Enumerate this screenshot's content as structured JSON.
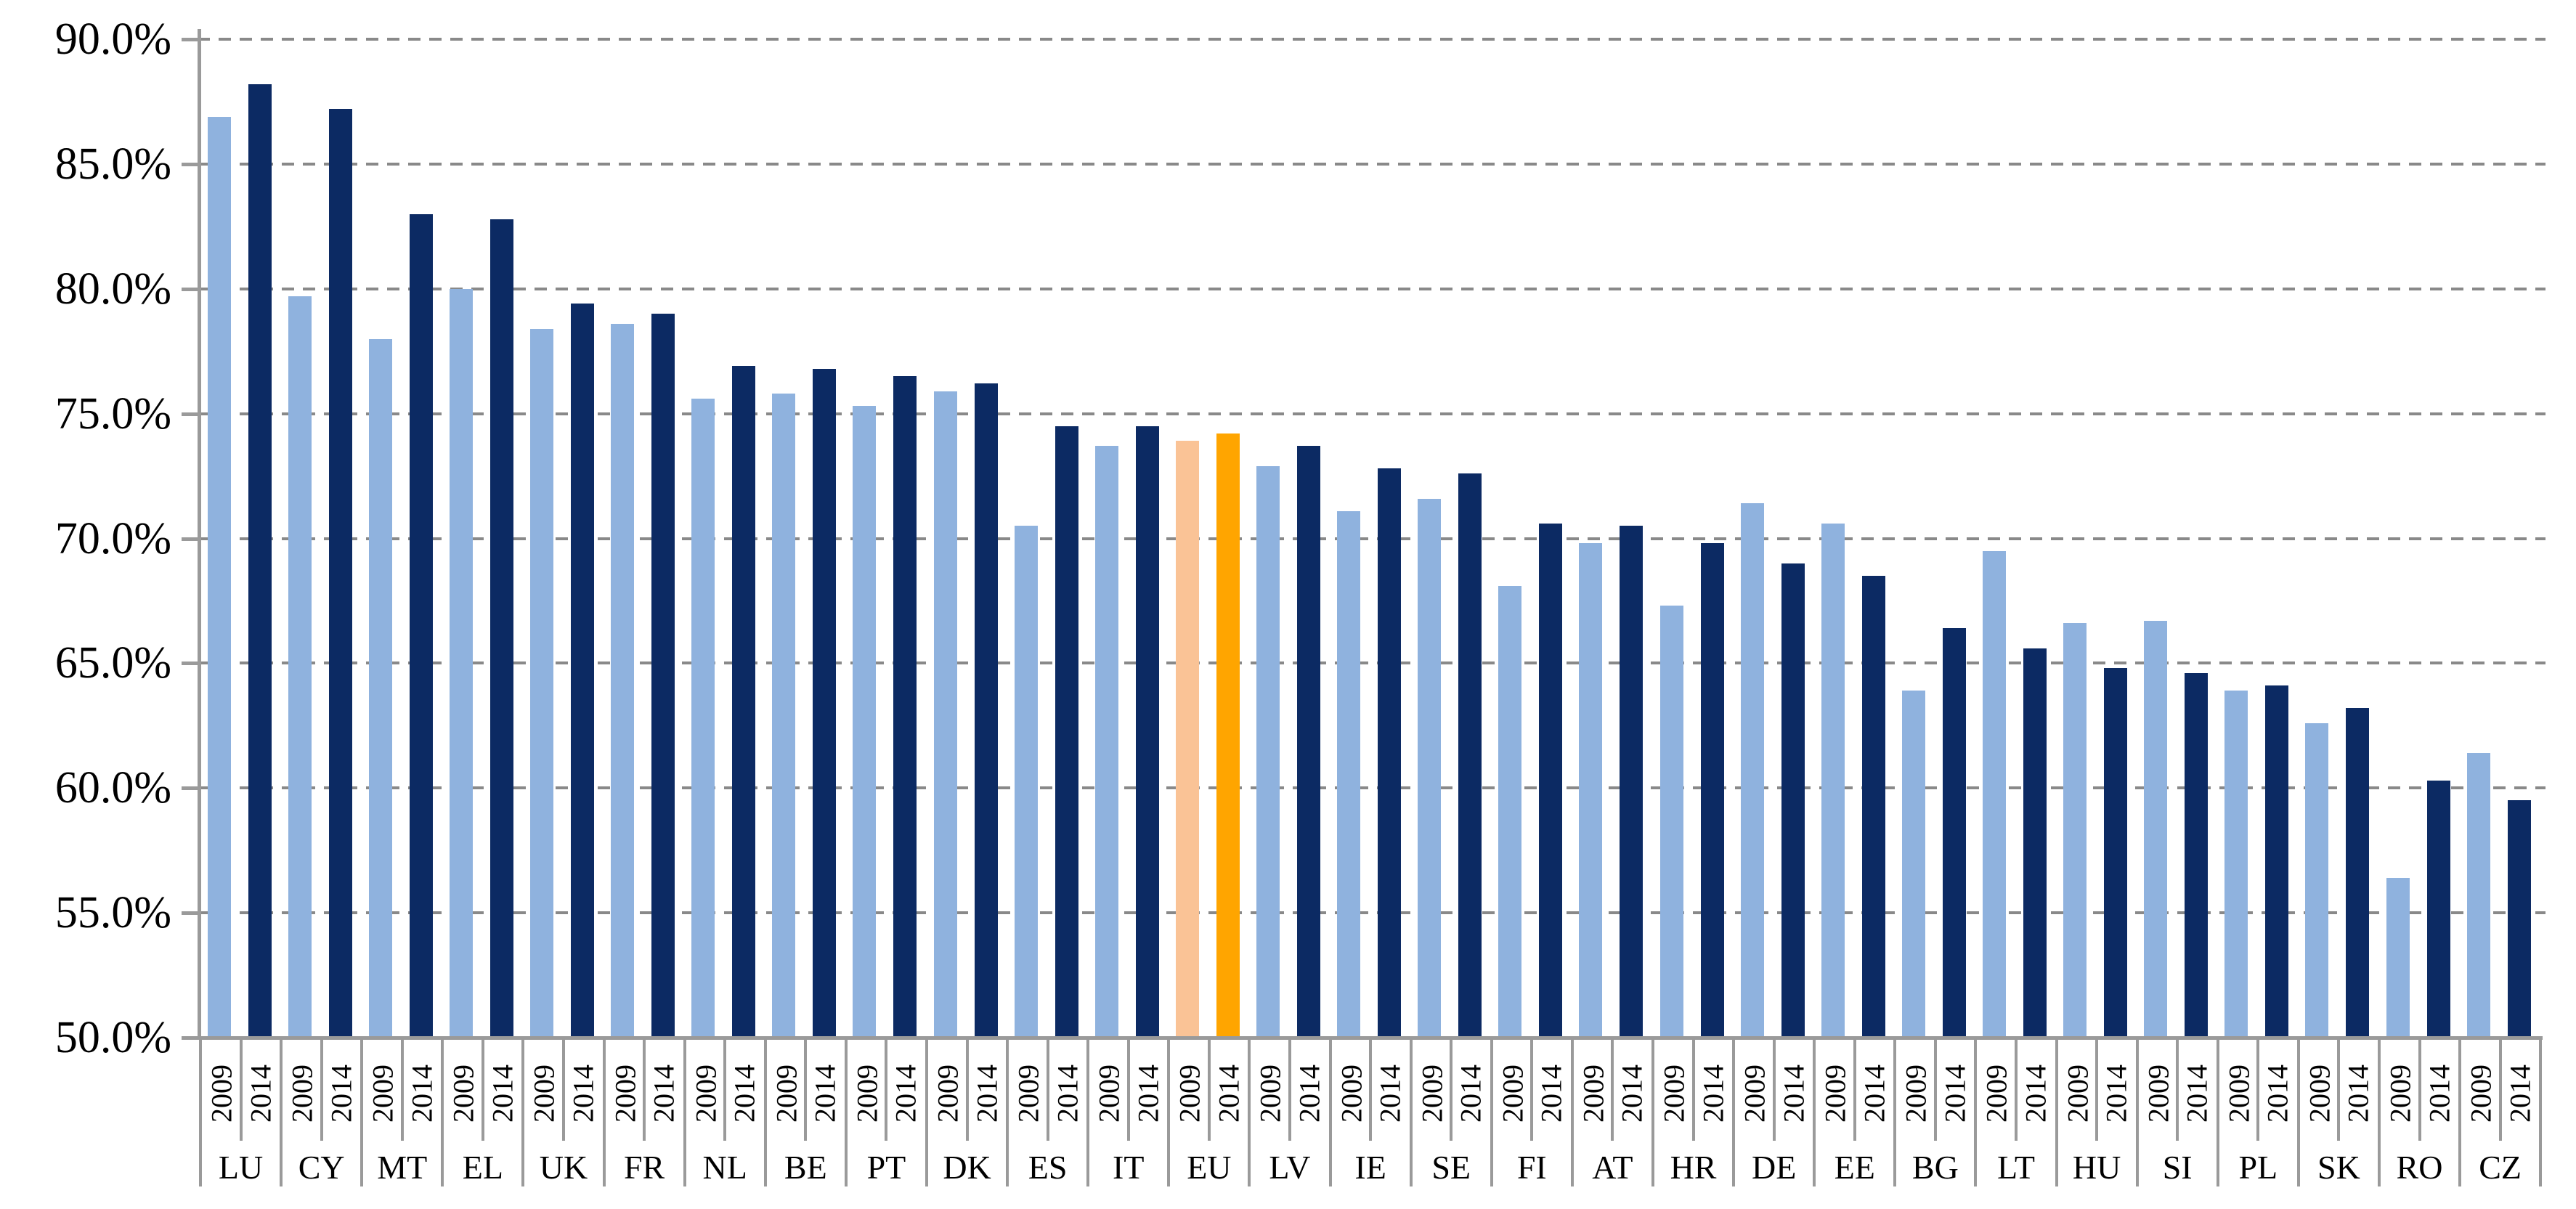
{
  "chart_data": {
    "type": "bar",
    "title": "",
    "xlabel": "",
    "ylabel": "",
    "ylim": [
      50,
      90
    ],
    "y_tick_step": 5,
    "grid": "dashed-horizontal",
    "legend": "none (years labeled under each bar)",
    "y_tick_labels": [
      {
        "label": "90.0%",
        "value": 90
      },
      {
        "label": "85.0%",
        "value": 85
      },
      {
        "label": "80.0%",
        "value": 80
      },
      {
        "label": "75.0%",
        "value": 75
      },
      {
        "label": "70.0%",
        "value": 70
      },
      {
        "label": "65.0%",
        "value": 65
      },
      {
        "label": "60.0%",
        "value": 60
      },
      {
        "label": "55.0%",
        "value": 55
      },
      {
        "label": "50.0%",
        "value": 50
      }
    ],
    "categories": [
      "LU",
      "CY",
      "MT",
      "EL",
      "UK",
      "FR",
      "NL",
      "BE",
      "PT",
      "DK",
      "ES",
      "IT",
      "EU",
      "LV",
      "IE",
      "SE",
      "FI",
      "AT",
      "HR",
      "DE",
      "EE",
      "BG",
      "LT",
      "HU",
      "SI",
      "PL",
      "SK",
      "RO",
      "CZ"
    ],
    "series": [
      {
        "name": "2009",
        "values": [
          86.9,
          79.7,
          78.0,
          80.0,
          78.4,
          78.6,
          75.6,
          75.8,
          75.3,
          75.9,
          70.5,
          73.7,
          73.9,
          72.9,
          71.1,
          71.6,
          68.1,
          69.8,
          67.3,
          71.4,
          70.6,
          63.9,
          69.5,
          66.6,
          66.7,
          63.9,
          62.6,
          56.4,
          61.4
        ]
      },
      {
        "name": "2014",
        "values": [
          88.2,
          87.2,
          83.0,
          82.8,
          79.4,
          79.0,
          76.9,
          76.8,
          76.5,
          76.2,
          74.5,
          74.5,
          74.2,
          73.7,
          72.8,
          72.6,
          70.6,
          70.5,
          69.8,
          69.0,
          68.5,
          66.4,
          65.6,
          64.8,
          64.6,
          64.1,
          63.2,
          60.3,
          59.5
        ]
      }
    ],
    "highlight_category": "EU",
    "colors": {
      "series_2009": "#8FB2DE",
      "series_2014": "#0C2A63",
      "highlight_2009": "#FAC396",
      "highlight_2014": "#FFA500",
      "gridline": "#898989",
      "axis": "#9A9A9A",
      "text": "#000000"
    }
  }
}
